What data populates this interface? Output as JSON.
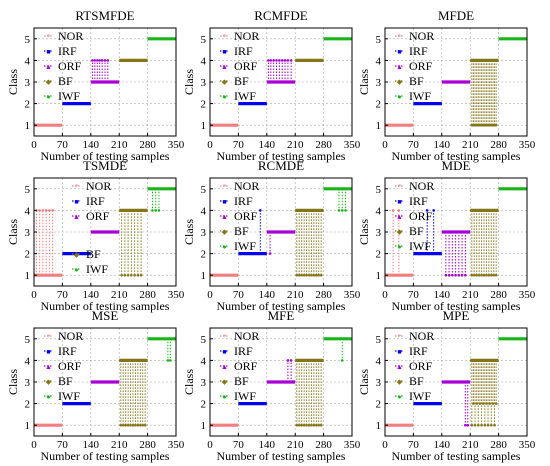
{
  "colors": {
    "NOR": "#f07f7f",
    "IRF": "#0000ee",
    "ORF": "#a600d6",
    "BF": "#857519",
    "IWF": "#18b418",
    "grid": "#a8a8a8",
    "axis": "#000000"
  },
  "legend_markers": {
    "NOR": "*",
    "IRF": "■",
    "ORF": "▲",
    "BF": "◆",
    "IWF": "●"
  },
  "chart_data": [
    {
      "type": "scatter",
      "title": "RTSMFDE",
      "xlabel": "Number of testing samples",
      "ylabel": "Class",
      "xlim": [
        0,
        350
      ],
      "ylim": [
        0.5,
        5.5
      ],
      "xticks": [
        "0",
        "70",
        "140",
        "210",
        "280",
        "350"
      ],
      "yticks": [
        "1",
        "2",
        "3",
        "4",
        "5"
      ],
      "grid": true,
      "legend": {
        "entries": [
          "NOR",
          "IRF",
          "ORF",
          "BF",
          "IWF"
        ],
        "placement": "top-left",
        "split_after": null
      },
      "segments": [
        {
          "name": "NOR",
          "x": [
            0,
            70
          ],
          "y": 1
        },
        {
          "name": "IRF",
          "x": [
            70,
            140
          ],
          "y": 2
        },
        {
          "name": "ORF",
          "x": [
            140,
            210
          ],
          "y": 3
        },
        {
          "name": "BF",
          "x": [
            210,
            280
          ],
          "y": 4
        },
        {
          "name": "IWF",
          "x": [
            280,
            350
          ],
          "y": 5
        }
      ],
      "misclassified": [
        {
          "class": "ORF",
          "samples": [
            144,
            150,
            156,
            162,
            168,
            175,
            182
          ],
          "predicted": 4
        }
      ]
    },
    {
      "type": "scatter",
      "title": "RCMFDE",
      "xlabel": "Number of testing samples",
      "ylabel": "Class",
      "xlim": [
        0,
        350
      ],
      "ylim": [
        0.5,
        5.5
      ],
      "xticks": [
        "0",
        "70",
        "140",
        "210",
        "280",
        "350"
      ],
      "yticks": [
        "1",
        "2",
        "3",
        "4",
        "5"
      ],
      "grid": true,
      "legend": {
        "entries": [
          "NOR",
          "IRF",
          "ORF",
          "BF",
          "IWF"
        ],
        "placement": "top-left",
        "split_after": null
      },
      "segments": [
        {
          "name": "NOR",
          "x": [
            0,
            70
          ],
          "y": 1
        },
        {
          "name": "IRF",
          "x": [
            70,
            140
          ],
          "y": 2
        },
        {
          "name": "ORF",
          "x": [
            140,
            210
          ],
          "y": 3
        },
        {
          "name": "BF",
          "x": [
            210,
            280
          ],
          "y": 4
        },
        {
          "name": "IWF",
          "x": [
            280,
            350
          ],
          "y": 5
        }
      ],
      "misclassified": [
        {
          "class": "ORF",
          "samples": [
            144,
            150,
            157,
            164,
            171,
            178,
            185,
            192,
            200
          ],
          "predicted": 4
        }
      ]
    },
    {
      "type": "scatter",
      "title": "MFDE",
      "xlabel": "Number of testing samples",
      "ylabel": "Class",
      "xlim": [
        0,
        350
      ],
      "ylim": [
        0.5,
        5.5
      ],
      "xticks": [
        "0",
        "70",
        "140",
        "210",
        "280",
        "350"
      ],
      "yticks": [
        "1",
        "2",
        "3",
        "4",
        "5"
      ],
      "grid": true,
      "legend": {
        "entries": [
          "NOR",
          "IRF",
          "ORF",
          "BF",
          "IWF"
        ],
        "placement": "top-left",
        "split_after": null
      },
      "segments": [
        {
          "name": "NOR",
          "x": [
            0,
            70
          ],
          "y": 1
        },
        {
          "name": "IRF",
          "x": [
            70,
            140
          ],
          "y": 2
        },
        {
          "name": "ORF",
          "x": [
            140,
            210
          ],
          "y": 3
        },
        {
          "name": "BF",
          "x": [
            210,
            280
          ],
          "y": 4
        },
        {
          "name": "IWF",
          "x": [
            280,
            350
          ],
          "y": 5
        }
      ],
      "misclassified": [
        {
          "class": "BF",
          "samples": [
            214,
            218,
            222,
            226,
            230,
            234,
            238,
            242,
            246,
            250,
            254,
            258,
            262,
            266,
            270,
            274
          ],
          "predicted": 1
        }
      ]
    },
    {
      "type": "scatter",
      "title": "TSMDE",
      "xlabel": "Number of testing samples",
      "ylabel": "Class",
      "xlim": [
        0,
        350
      ],
      "ylim": [
        0.5,
        5.5
      ],
      "xticks": [
        "0",
        "70",
        "140",
        "210",
        "280",
        "350"
      ],
      "yticks": [
        "1",
        "2",
        "3",
        "4",
        "5"
      ],
      "grid": true,
      "legend": {
        "entries": [
          "NOR",
          "IRF",
          "ORF",
          "BF",
          "IWF"
        ],
        "placement": "top-center",
        "split_after": 3
      },
      "segments": [
        {
          "name": "NOR",
          "x": [
            0,
            70
          ],
          "y": 1
        },
        {
          "name": "IRF",
          "x": [
            70,
            140
          ],
          "y": 2
        },
        {
          "name": "ORF",
          "x": [
            140,
            210
          ],
          "y": 3
        },
        {
          "name": "BF",
          "x": [
            210,
            280
          ],
          "y": 4
        },
        {
          "name": "IWF",
          "x": [
            280,
            350
          ],
          "y": 5
        }
      ],
      "misclassified": [
        {
          "class": "NOR",
          "samples": [
            6,
            14,
            22,
            30,
            38,
            46
          ],
          "predicted": 4
        },
        {
          "class": "BF",
          "samples": [
            216,
            224,
            232,
            240,
            248,
            256,
            264
          ],
          "predicted": 1
        },
        {
          "class": "IWF",
          "samples": [
            292,
            300,
            308
          ],
          "predicted": 4
        }
      ]
    },
    {
      "type": "scatter",
      "title": "RCMDE",
      "xlabel": "Number of testing samples",
      "ylabel": "Class",
      "xlim": [
        0,
        350
      ],
      "ylim": [
        0.5,
        5.5
      ],
      "xticks": [
        "0",
        "70",
        "140",
        "210",
        "280",
        "350"
      ],
      "yticks": [
        "1",
        "2",
        "3",
        "4",
        "5"
      ],
      "grid": true,
      "legend": {
        "entries": [
          "NOR",
          "IRF",
          "ORF",
          "BF",
          "IWF"
        ],
        "placement": "top-left",
        "split_after": null
      },
      "segments": [
        {
          "name": "NOR",
          "x": [
            0,
            70
          ],
          "y": 1
        },
        {
          "name": "IRF",
          "x": [
            70,
            140
          ],
          "y": 2
        },
        {
          "name": "ORF",
          "x": [
            140,
            210
          ],
          "y": 3
        },
        {
          "name": "BF",
          "x": [
            210,
            280
          ],
          "y": 4
        },
        {
          "name": "IWF",
          "x": [
            280,
            350
          ],
          "y": 5
        }
      ],
      "misclassified": [
        {
          "class": "IRF",
          "samples": [
            124
          ],
          "predicted": 4
        },
        {
          "class": "ORF",
          "samples": [
            148
          ],
          "predicted": 2
        },
        {
          "class": "BF",
          "samples": [
            214,
            220,
            226,
            232,
            238,
            244,
            250,
            256,
            262,
            268,
            274
          ],
          "predicted": 1
        },
        {
          "class": "IWF",
          "samples": [
            318,
            326,
            334
          ],
          "predicted": 4
        }
      ]
    },
    {
      "type": "scatter",
      "title": "MDE",
      "xlabel": "Number of testing samples",
      "ylabel": "Class",
      "xlim": [
        0,
        350
      ],
      "ylim": [
        0.5,
        5.5
      ],
      "xticks": [
        "0",
        "70",
        "140",
        "210",
        "280",
        "350"
      ],
      "yticks": [
        "1",
        "2",
        "3",
        "4",
        "5"
      ],
      "grid": true,
      "legend": {
        "entries": [
          "NOR",
          "IRF",
          "ORF",
          "BF",
          "IWF"
        ],
        "placement": "top-left",
        "split_after": null
      },
      "segments": [
        {
          "name": "NOR",
          "x": [
            0,
            70
          ],
          "y": 1
        },
        {
          "name": "IRF",
          "x": [
            70,
            140
          ],
          "y": 2
        },
        {
          "name": "ORF",
          "x": [
            140,
            210
          ],
          "y": 3
        },
        {
          "name": "BF",
          "x": [
            210,
            280
          ],
          "y": 4
        },
        {
          "name": "IWF",
          "x": [
            280,
            350
          ],
          "y": 5
        }
      ],
      "misclassified": [
        {
          "class": "NOR",
          "samples": [
            20,
            34
          ],
          "predicted": 4
        },
        {
          "class": "IRF",
          "samples": [
            104,
            120
          ],
          "predicted": 4
        },
        {
          "class": "ORF",
          "samples": [
            150,
            158,
            166,
            174,
            182,
            190,
            198
          ],
          "predicted": 1
        },
        {
          "class": "BF",
          "samples": [
            214,
            220,
            226,
            232,
            238,
            244,
            250,
            256,
            262,
            268,
            274
          ],
          "predicted": 1
        }
      ]
    },
    {
      "type": "scatter",
      "title": "MSE",
      "xlabel": "Number of testing samples",
      "ylabel": "Class",
      "xlim": [
        0,
        350
      ],
      "ylim": [
        0.5,
        5.5
      ],
      "xticks": [
        "0",
        "70",
        "140",
        "210",
        "280",
        "350"
      ],
      "yticks": [
        "1",
        "2",
        "3",
        "4",
        "5"
      ],
      "grid": true,
      "legend": {
        "entries": [
          "NOR",
          "IRF",
          "ORF",
          "BF",
          "IWF"
        ],
        "placement": "top-left",
        "split_after": null
      },
      "segments": [
        {
          "name": "NOR",
          "x": [
            0,
            70
          ],
          "y": 1
        },
        {
          "name": "IRF",
          "x": [
            70,
            140
          ],
          "y": 2
        },
        {
          "name": "ORF",
          "x": [
            140,
            210
          ],
          "y": 3
        },
        {
          "name": "BF",
          "x": [
            210,
            280
          ],
          "y": 4
        },
        {
          "name": "IWF",
          "x": [
            280,
            350
          ],
          "y": 5
        }
      ],
      "misclassified": [
        {
          "class": "BF",
          "samples": [
            214,
            220,
            226,
            232,
            238,
            244,
            250,
            256,
            262,
            268,
            274
          ],
          "predicted": 1
        },
        {
          "class": "IWF",
          "samples": [
            330,
            336
          ],
          "predicted": 4
        }
      ]
    },
    {
      "type": "scatter",
      "title": "MFE",
      "xlabel": "Number of testing samples",
      "ylabel": "Class",
      "xlim": [
        0,
        350
      ],
      "ylim": [
        0.5,
        5.5
      ],
      "xticks": [
        "0",
        "70",
        "140",
        "210",
        "280",
        "350"
      ],
      "yticks": [
        "1",
        "2",
        "3",
        "4",
        "5"
      ],
      "grid": true,
      "legend": {
        "entries": [
          "NOR",
          "IRF",
          "ORF",
          "BF",
          "IWF"
        ],
        "placement": "top-left",
        "split_after": null
      },
      "segments": [
        {
          "name": "NOR",
          "x": [
            0,
            70
          ],
          "y": 1
        },
        {
          "name": "IRF",
          "x": [
            70,
            140
          ],
          "y": 2
        },
        {
          "name": "ORF",
          "x": [
            140,
            210
          ],
          "y": 3
        },
        {
          "name": "BF",
          "x": [
            210,
            280
          ],
          "y": 4
        },
        {
          "name": "IWF",
          "x": [
            280,
            350
          ],
          "y": 5
        }
      ],
      "misclassified": [
        {
          "class": "ORF",
          "samples": [
            192,
            200
          ],
          "predicted": 4
        },
        {
          "class": "BF",
          "samples": [
            214,
            220,
            226,
            232,
            238,
            244,
            250,
            256,
            262,
            268,
            274
          ],
          "predicted": 1
        },
        {
          "class": "IWF",
          "samples": [
            326
          ],
          "predicted": 4
        }
      ]
    },
    {
      "type": "scatter",
      "title": "MPE",
      "xlabel": "Number of testing samples",
      "ylabel": "Class",
      "xlim": [
        0,
        350
      ],
      "ylim": [
        0.5,
        5.5
      ],
      "xticks": [
        "0",
        "70",
        "140",
        "210",
        "280",
        "350"
      ],
      "yticks": [
        "1",
        "2",
        "3",
        "4",
        "5"
      ],
      "grid": true,
      "legend": {
        "entries": [
          "NOR",
          "IRF",
          "ORF",
          "BF",
          "IWF"
        ],
        "placement": "top-left",
        "split_after": null
      },
      "segments": [
        {
          "name": "NOR",
          "x": [
            0,
            70
          ],
          "y": 1
        },
        {
          "name": "IRF",
          "x": [
            70,
            140
          ],
          "y": 2
        },
        {
          "name": "ORF",
          "x": [
            140,
            210
          ],
          "y": 3
        },
        {
          "name": "BF",
          "x": [
            210,
            280
          ],
          "y": 4
        },
        {
          "name": "IWF",
          "x": [
            280,
            350
          ],
          "y": 5
        }
      ],
      "misclassified": [
        {
          "class": "ORF",
          "samples": [
            198,
            204
          ],
          "predicted": 1
        },
        {
          "class": "BF",
          "samples": [
            214,
            222,
            230,
            238,
            246,
            254,
            262,
            270
          ],
          "predicted": 1
        },
        {
          "class": "BF",
          "samples": [
            218,
            226,
            234,
            242,
            250,
            258,
            266,
            274
          ],
          "predicted": 2
        }
      ]
    }
  ]
}
